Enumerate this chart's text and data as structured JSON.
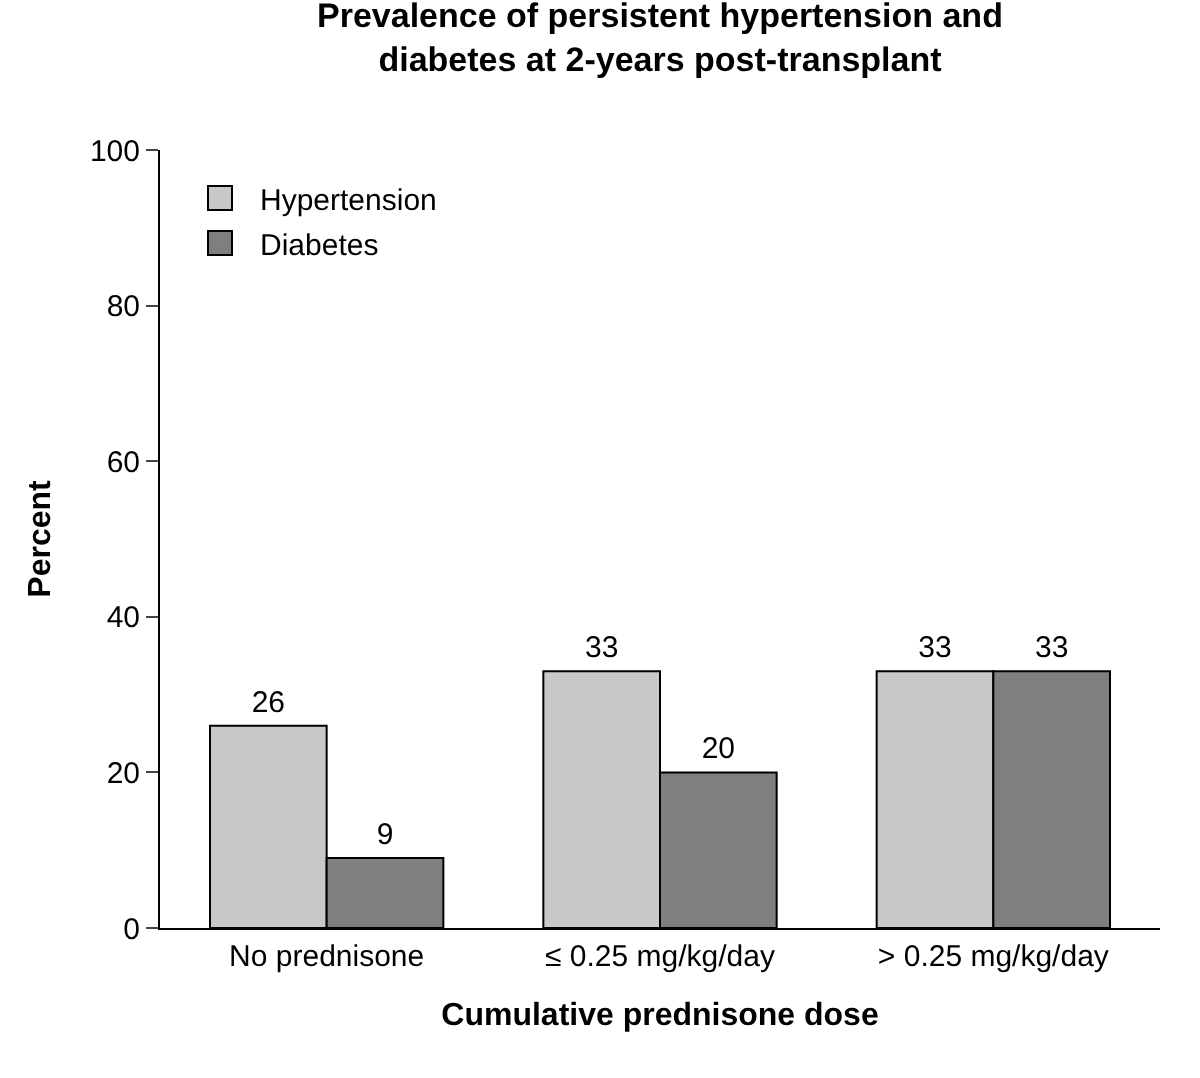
{
  "chart_data": {
    "type": "bar",
    "title": "Prevalence of persistent hypertension and\ndiabetes at 2-years post-transplant",
    "xlabel": "Cumulative prednisone dose",
    "ylabel": "Percent",
    "categories": [
      "No prednisone",
      "≤ 0.25 mg/kg/day",
      "> 0.25 mg/kg/day"
    ],
    "series": [
      {
        "name": "Hypertension",
        "color": "#c8c8c8",
        "values": [
          26,
          33,
          33
        ]
      },
      {
        "name": "Diabetes",
        "color": "#7f7f7f",
        "values": [
          9,
          20,
          33
        ]
      }
    ],
    "ylim": [
      0,
      100
    ],
    "yticks": [
      0,
      20,
      40,
      60,
      80,
      100
    ],
    "grid": false,
    "legend": "top left",
    "data_labels": true
  }
}
